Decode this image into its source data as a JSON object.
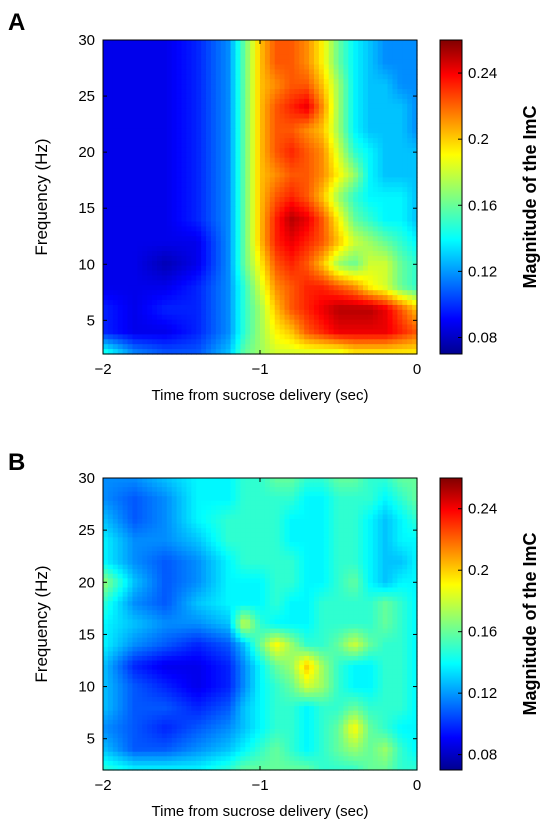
{
  "chart_data": [
    {
      "panel": "A",
      "type": "heatmap",
      "xlabel": "Time from sucrose delivery (sec)",
      "ylabel": "Frequency (Hz)",
      "colorbar_label": "Magnitude of the ImC",
      "xlim": [
        -2,
        0
      ],
      "ylim": [
        2,
        30
      ],
      "xticks": [
        -2,
        -1,
        0
      ],
      "xtick_labels": [
        "−2",
        "−1",
        "0"
      ],
      "yticks": [
        5,
        10,
        15,
        20,
        25,
        30
      ],
      "ytick_labels": [
        "5",
        "10",
        "15",
        "20",
        "25",
        "30"
      ],
      "clim": [
        0.07,
        0.26
      ],
      "cticks": [
        0.08,
        0.12,
        0.16,
        0.2,
        0.24
      ],
      "ctick_labels": [
        "0.08",
        "0.12",
        "0.16",
        "0.2",
        "0.24"
      ],
      "colormap": "jet",
      "x": [
        -2.0,
        -1.8,
        -1.6,
        -1.4,
        -1.2,
        -1.1,
        -1.0,
        -0.9,
        -0.8,
        -0.7,
        -0.6,
        -0.5,
        -0.4,
        -0.3,
        -0.2,
        -0.1,
        0.0
      ],
      "y": [
        2,
        4,
        6,
        8,
        10,
        12,
        14,
        16,
        18,
        20,
        22,
        24,
        26,
        28,
        30
      ],
      "z": [
        [
          0.15,
          0.12,
          0.11,
          0.11,
          0.13,
          0.16,
          0.17,
          0.18,
          0.18,
          0.18,
          0.18,
          0.18,
          0.19,
          0.19,
          0.19,
          0.19,
          0.19
        ],
        [
          0.1,
          0.09,
          0.09,
          0.1,
          0.12,
          0.15,
          0.17,
          0.19,
          0.2,
          0.22,
          0.23,
          0.24,
          0.24,
          0.24,
          0.24,
          0.23,
          0.22
        ],
        [
          0.1,
          0.09,
          0.1,
          0.1,
          0.12,
          0.15,
          0.17,
          0.2,
          0.22,
          0.23,
          0.24,
          0.25,
          0.25,
          0.25,
          0.24,
          0.22,
          0.2
        ],
        [
          0.09,
          0.09,
          0.09,
          0.1,
          0.12,
          0.15,
          0.18,
          0.21,
          0.22,
          0.23,
          0.23,
          0.22,
          0.21,
          0.19,
          0.18,
          0.16,
          0.15
        ],
        [
          0.09,
          0.09,
          0.08,
          0.09,
          0.12,
          0.16,
          0.19,
          0.22,
          0.23,
          0.22,
          0.2,
          0.17,
          0.16,
          0.18,
          0.18,
          0.16,
          0.15
        ],
        [
          0.09,
          0.09,
          0.09,
          0.09,
          0.12,
          0.16,
          0.2,
          0.23,
          0.24,
          0.23,
          0.22,
          0.2,
          0.18,
          0.17,
          0.16,
          0.15,
          0.14
        ],
        [
          0.09,
          0.09,
          0.09,
          0.1,
          0.12,
          0.16,
          0.2,
          0.23,
          0.25,
          0.24,
          0.22,
          0.19,
          0.16,
          0.15,
          0.14,
          0.14,
          0.13
        ],
        [
          0.09,
          0.09,
          0.09,
          0.1,
          0.12,
          0.16,
          0.2,
          0.22,
          0.23,
          0.22,
          0.2,
          0.17,
          0.15,
          0.14,
          0.14,
          0.14,
          0.13
        ],
        [
          0.09,
          0.09,
          0.09,
          0.1,
          0.12,
          0.16,
          0.2,
          0.21,
          0.22,
          0.22,
          0.21,
          0.19,
          0.17,
          0.14,
          0.13,
          0.13,
          0.13
        ],
        [
          0.09,
          0.09,
          0.09,
          0.1,
          0.12,
          0.16,
          0.2,
          0.22,
          0.23,
          0.22,
          0.21,
          0.18,
          0.15,
          0.14,
          0.13,
          0.13,
          0.13
        ],
        [
          0.09,
          0.09,
          0.09,
          0.1,
          0.12,
          0.16,
          0.2,
          0.22,
          0.22,
          0.21,
          0.2,
          0.17,
          0.14,
          0.13,
          0.13,
          0.13,
          0.12
        ],
        [
          0.09,
          0.09,
          0.09,
          0.1,
          0.12,
          0.16,
          0.2,
          0.22,
          0.23,
          0.24,
          0.21,
          0.17,
          0.14,
          0.13,
          0.13,
          0.13,
          0.12
        ],
        [
          0.09,
          0.09,
          0.09,
          0.1,
          0.12,
          0.16,
          0.2,
          0.21,
          0.22,
          0.22,
          0.2,
          0.17,
          0.14,
          0.13,
          0.13,
          0.12,
          0.12
        ],
        [
          0.09,
          0.09,
          0.09,
          0.1,
          0.12,
          0.16,
          0.2,
          0.22,
          0.22,
          0.21,
          0.19,
          0.16,
          0.14,
          0.13,
          0.12,
          0.12,
          0.12
        ],
        [
          0.09,
          0.09,
          0.09,
          0.1,
          0.12,
          0.16,
          0.2,
          0.22,
          0.22,
          0.21,
          0.19,
          0.16,
          0.14,
          0.13,
          0.12,
          0.12,
          0.12
        ]
      ]
    },
    {
      "panel": "B",
      "type": "heatmap",
      "xlabel": "Time from sucrose delivery (sec)",
      "ylabel": "Frequency (Hz)",
      "colorbar_label": "Magnitude of the ImC",
      "xlim": [
        -2,
        0
      ],
      "ylim": [
        2,
        30
      ],
      "xticks": [
        -2,
        -1,
        0
      ],
      "xtick_labels": [
        "−2",
        "−1",
        "0"
      ],
      "yticks": [
        5,
        10,
        15,
        20,
        25,
        30
      ],
      "ytick_labels": [
        "5",
        "10",
        "15",
        "20",
        "25",
        "30"
      ],
      "clim": [
        0.07,
        0.26
      ],
      "cticks": [
        0.08,
        0.12,
        0.16,
        0.2,
        0.24
      ],
      "ctick_labels": [
        "0.08",
        "0.12",
        "0.16",
        "0.2",
        "0.24"
      ],
      "colormap": "jet",
      "x": [
        -2.0,
        -1.8,
        -1.6,
        -1.4,
        -1.2,
        -1.1,
        -1.0,
        -0.9,
        -0.8,
        -0.7,
        -0.6,
        -0.5,
        -0.4,
        -0.3,
        -0.2,
        -0.1,
        0.0
      ],
      "y": [
        2,
        4,
        6,
        8,
        10,
        12,
        14,
        16,
        18,
        20,
        22,
        24,
        26,
        28,
        30
      ],
      "z": [
        [
          0.15,
          0.14,
          0.14,
          0.14,
          0.15,
          0.16,
          0.16,
          0.16,
          0.16,
          0.16,
          0.15,
          0.15,
          0.15,
          0.16,
          0.16,
          0.15,
          0.15
        ],
        [
          0.13,
          0.11,
          0.11,
          0.12,
          0.13,
          0.14,
          0.15,
          0.16,
          0.15,
          0.14,
          0.15,
          0.16,
          0.17,
          0.16,
          0.17,
          0.15,
          0.14
        ],
        [
          0.12,
          0.11,
          0.1,
          0.11,
          0.12,
          0.13,
          0.14,
          0.15,
          0.15,
          0.14,
          0.15,
          0.16,
          0.19,
          0.16,
          0.15,
          0.14,
          0.14
        ],
        [
          0.13,
          0.11,
          0.11,
          0.1,
          0.11,
          0.13,
          0.14,
          0.15,
          0.15,
          0.14,
          0.15,
          0.15,
          0.16,
          0.15,
          0.15,
          0.15,
          0.14
        ],
        [
          0.13,
          0.11,
          0.1,
          0.09,
          0.1,
          0.12,
          0.14,
          0.15,
          0.16,
          0.18,
          0.17,
          0.15,
          0.14,
          0.14,
          0.15,
          0.15,
          0.14
        ],
        [
          0.13,
          0.1,
          0.09,
          0.09,
          0.1,
          0.12,
          0.14,
          0.16,
          0.17,
          0.2,
          0.17,
          0.15,
          0.14,
          0.14,
          0.15,
          0.15,
          0.14
        ],
        [
          0.14,
          0.12,
          0.11,
          0.1,
          0.11,
          0.13,
          0.16,
          0.19,
          0.17,
          0.15,
          0.15,
          0.16,
          0.18,
          0.16,
          0.15,
          0.15,
          0.14
        ],
        [
          0.14,
          0.13,
          0.12,
          0.12,
          0.13,
          0.18,
          0.15,
          0.14,
          0.14,
          0.14,
          0.15,
          0.15,
          0.15,
          0.15,
          0.16,
          0.15,
          0.14
        ],
        [
          0.15,
          0.12,
          0.11,
          0.13,
          0.14,
          0.14,
          0.14,
          0.15,
          0.14,
          0.14,
          0.15,
          0.15,
          0.15,
          0.15,
          0.16,
          0.15,
          0.14
        ],
        [
          0.17,
          0.13,
          0.11,
          0.12,
          0.14,
          0.14,
          0.14,
          0.15,
          0.15,
          0.14,
          0.14,
          0.15,
          0.16,
          0.14,
          0.13,
          0.14,
          0.14
        ],
        [
          0.14,
          0.12,
          0.11,
          0.12,
          0.14,
          0.15,
          0.15,
          0.15,
          0.15,
          0.14,
          0.14,
          0.15,
          0.15,
          0.14,
          0.13,
          0.13,
          0.14
        ],
        [
          0.14,
          0.12,
          0.12,
          0.13,
          0.15,
          0.15,
          0.15,
          0.15,
          0.14,
          0.14,
          0.14,
          0.15,
          0.15,
          0.14,
          0.13,
          0.14,
          0.14
        ],
        [
          0.13,
          0.11,
          0.12,
          0.14,
          0.15,
          0.15,
          0.15,
          0.15,
          0.14,
          0.14,
          0.14,
          0.15,
          0.15,
          0.14,
          0.13,
          0.14,
          0.15
        ],
        [
          0.12,
          0.11,
          0.12,
          0.14,
          0.14,
          0.15,
          0.15,
          0.15,
          0.15,
          0.14,
          0.14,
          0.15,
          0.15,
          0.15,
          0.14,
          0.15,
          0.16
        ],
        [
          0.12,
          0.12,
          0.13,
          0.14,
          0.14,
          0.15,
          0.15,
          0.16,
          0.16,
          0.15,
          0.15,
          0.16,
          0.16,
          0.15,
          0.15,
          0.16,
          0.16
        ]
      ]
    }
  ]
}
